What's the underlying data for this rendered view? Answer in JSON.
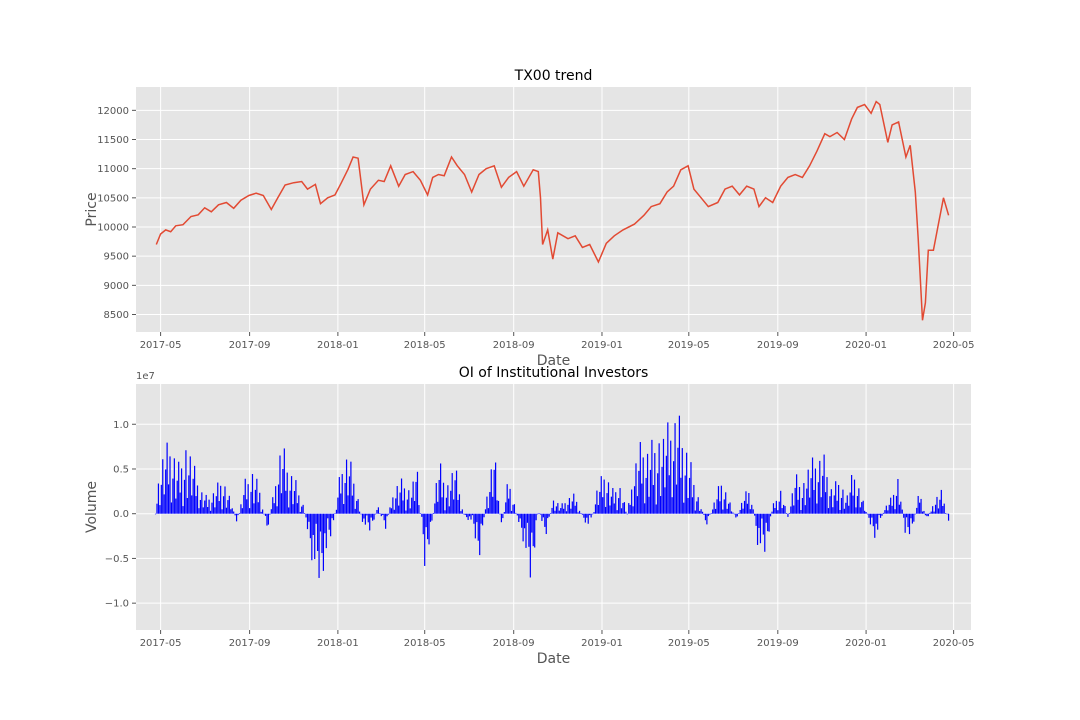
{
  "chart_data": [
    {
      "type": "line",
      "title": "TX00 trend",
      "xlabel": "Date",
      "ylabel": "Price",
      "xlim": [
        "2017-03-28",
        "2020-05-25"
      ],
      "ylim": [
        8200,
        12400
      ],
      "x_ticks": [
        "2017-05",
        "2017-09",
        "2018-01",
        "2018-05",
        "2018-09",
        "2019-01",
        "2019-05",
        "2019-09",
        "2020-01",
        "2020-05"
      ],
      "y_ticks": [
        8500,
        9000,
        9500,
        10000,
        10500,
        11000,
        11500,
        12000
      ],
      "grid": true,
      "series": [
        {
          "color": "#e24a33",
          "points": [
            [
              "2017-04-25",
              9700
            ],
            [
              "2017-05-01",
              9880
            ],
            [
              "2017-05-08",
              9950
            ],
            [
              "2017-05-15",
              9920
            ],
            [
              "2017-05-22",
              10020
            ],
            [
              "2017-06-01",
              10040
            ],
            [
              "2017-06-12",
              10180
            ],
            [
              "2017-06-22",
              10210
            ],
            [
              "2017-07-01",
              10330
            ],
            [
              "2017-07-10",
              10260
            ],
            [
              "2017-07-20",
              10380
            ],
            [
              "2017-07-31",
              10420
            ],
            [
              "2017-08-10",
              10320
            ],
            [
              "2017-08-20",
              10460
            ],
            [
              "2017-08-31",
              10540
            ],
            [
              "2017-09-10",
              10580
            ],
            [
              "2017-09-20",
              10540
            ],
            [
              "2017-10-01",
              10300
            ],
            [
              "2017-10-10",
              10500
            ],
            [
              "2017-10-20",
              10720
            ],
            [
              "2017-11-01",
              10760
            ],
            [
              "2017-11-12",
              10780
            ],
            [
              "2017-11-20",
              10650
            ],
            [
              "2017-12-01",
              10730
            ],
            [
              "2017-12-08",
              10400
            ],
            [
              "2017-12-18",
              10500
            ],
            [
              "2017-12-28",
              10550
            ],
            [
              "2018-01-05",
              10740
            ],
            [
              "2018-01-15",
              10990
            ],
            [
              "2018-01-22",
              11200
            ],
            [
              "2018-01-29",
              11180
            ],
            [
              "2018-02-06",
              10380
            ],
            [
              "2018-02-15",
              10650
            ],
            [
              "2018-02-26",
              10800
            ],
            [
              "2018-03-06",
              10780
            ],
            [
              "2018-03-15",
              11050
            ],
            [
              "2018-03-26",
              10700
            ],
            [
              "2018-04-04",
              10900
            ],
            [
              "2018-04-15",
              10950
            ],
            [
              "2018-04-25",
              10800
            ],
            [
              "2018-05-05",
              10550
            ],
            [
              "2018-05-12",
              10850
            ],
            [
              "2018-05-20",
              10900
            ],
            [
              "2018-05-28",
              10880
            ],
            [
              "2018-06-07",
              11200
            ],
            [
              "2018-06-15",
              11050
            ],
            [
              "2018-06-25",
              10900
            ],
            [
              "2018-07-05",
              10600
            ],
            [
              "2018-07-15",
              10900
            ],
            [
              "2018-07-25",
              11000
            ],
            [
              "2018-08-05",
              11050
            ],
            [
              "2018-08-15",
              10680
            ],
            [
              "2018-08-25",
              10850
            ],
            [
              "2018-09-05",
              10950
            ],
            [
              "2018-09-15",
              10700
            ],
            [
              "2018-09-28",
              10980
            ],
            [
              "2018-10-05",
              10950
            ],
            [
              "2018-10-08",
              10500
            ],
            [
              "2018-10-11",
              9700
            ],
            [
              "2018-10-18",
              9950
            ],
            [
              "2018-10-25",
              9450
            ],
            [
              "2018-11-01",
              9900
            ],
            [
              "2018-11-15",
              9800
            ],
            [
              "2018-11-25",
              9850
            ],
            [
              "2018-12-05",
              9650
            ],
            [
              "2018-12-15",
              9700
            ],
            [
              "2018-12-27",
              9400
            ],
            [
              "2019-01-07",
              9720
            ],
            [
              "2019-01-18",
              9850
            ],
            [
              "2019-01-30",
              9950
            ],
            [
              "2019-02-15",
              10050
            ],
            [
              "2019-02-28",
              10200
            ],
            [
              "2019-03-10",
              10350
            ],
            [
              "2019-03-22",
              10400
            ],
            [
              "2019-04-01",
              10600
            ],
            [
              "2019-04-10",
              10700
            ],
            [
              "2019-04-20",
              10980
            ],
            [
              "2019-04-30",
              11050
            ],
            [
              "2019-05-08",
              10650
            ],
            [
              "2019-05-18",
              10500
            ],
            [
              "2019-05-28",
              10350
            ],
            [
              "2019-06-10",
              10420
            ],
            [
              "2019-06-20",
              10650
            ],
            [
              "2019-06-30",
              10700
            ],
            [
              "2019-07-10",
              10550
            ],
            [
              "2019-07-20",
              10700
            ],
            [
              "2019-07-30",
              10650
            ],
            [
              "2019-08-06",
              10350
            ],
            [
              "2019-08-15",
              10500
            ],
            [
              "2019-08-25",
              10420
            ],
            [
              "2019-09-05",
              10700
            ],
            [
              "2019-09-15",
              10850
            ],
            [
              "2019-09-25",
              10900
            ],
            [
              "2019-10-05",
              10850
            ],
            [
              "2019-10-15",
              11050
            ],
            [
              "2019-10-25",
              11300
            ],
            [
              "2019-11-05",
              11600
            ],
            [
              "2019-11-12",
              11550
            ],
            [
              "2019-11-22",
              11620
            ],
            [
              "2019-12-02",
              11500
            ],
            [
              "2019-12-12",
              11850
            ],
            [
              "2019-12-20",
              12050
            ],
            [
              "2019-12-30",
              12100
            ],
            [
              "2020-01-08",
              11950
            ],
            [
              "2020-01-15",
              12150
            ],
            [
              "2020-01-20",
              12100
            ],
            [
              "2020-01-31",
              11450
            ],
            [
              "2020-02-06",
              11750
            ],
            [
              "2020-02-15",
              11800
            ],
            [
              "2020-02-25",
              11200
            ],
            [
              "2020-03-02",
              11400
            ],
            [
              "2020-03-09",
              10600
            ],
            [
              "2020-03-13",
              9800
            ],
            [
              "2020-03-19",
              8400
            ],
            [
              "2020-03-23",
              8700
            ],
            [
              "2020-03-27",
              9600
            ],
            [
              "2020-04-03",
              9600
            ],
            [
              "2020-04-10",
              10050
            ],
            [
              "2020-04-17",
              10500
            ],
            [
              "2020-04-24",
              10200
            ]
          ]
        }
      ]
    },
    {
      "type": "bar",
      "title": "OI of Institutional Investors",
      "xlabel": "Date",
      "ylabel": "Volume",
      "offset_text": "1e7",
      "xlim": [
        "2017-03-28",
        "2020-05-25"
      ],
      "ylim": [
        -1.3,
        1.45
      ],
      "x_ticks": [
        "2017-05",
        "2017-09",
        "2018-01",
        "2018-05",
        "2018-09",
        "2019-01",
        "2019-05",
        "2019-09",
        "2020-01",
        "2020-05"
      ],
      "y_ticks": [
        1.0,
        0.5,
        0.0,
        -0.5,
        -1.0
      ],
      "y_tick_labels": [
        "1.0",
        "0.5",
        "0.0",
        "−0.5",
        "−1.0"
      ],
      "grid": true,
      "bar_color": "#0000ff",
      "bar_step_days": 2,
      "start_date": "2017-04-24",
      "envelope": [
        [
          "2017-04-24",
          0.0
        ],
        [
          "2017-04-27",
          0.4
        ],
        [
          "2017-05-05",
          0.75
        ],
        [
          "2017-05-15",
          0.9
        ],
        [
          "2017-05-25",
          0.6
        ],
        [
          "2017-06-05",
          0.9
        ],
        [
          "2017-06-15",
          0.6
        ],
        [
          "2017-06-25",
          0.3
        ],
        [
          "2017-07-05",
          0.2
        ],
        [
          "2017-07-15",
          0.3
        ],
        [
          "2017-07-25",
          0.5
        ],
        [
          "2017-08-05",
          0.2
        ],
        [
          "2017-08-15",
          -0.15
        ],
        [
          "2017-08-25",
          0.4
        ],
        [
          "2017-09-05",
          0.55
        ],
        [
          "2017-09-15",
          0.35
        ],
        [
          "2017-09-25",
          -0.25
        ],
        [
          "2017-10-05",
          0.3
        ],
        [
          "2017-10-15",
          0.9
        ],
        [
          "2017-10-25",
          0.6
        ],
        [
          "2017-11-05",
          0.4
        ],
        [
          "2017-11-15",
          0.1
        ],
        [
          "2017-11-25",
          -0.5
        ],
        [
          "2017-12-05",
          -0.9
        ],
        [
          "2017-12-15",
          -0.6
        ],
        [
          "2017-12-25",
          -0.2
        ],
        [
          "2018-01-05",
          0.55
        ],
        [
          "2018-01-15",
          0.75
        ],
        [
          "2018-01-25",
          0.4
        ],
        [
          "2018-02-05",
          -0.15
        ],
        [
          "2018-02-15",
          -0.25
        ],
        [
          "2018-02-25",
          0.1
        ],
        [
          "2018-03-08",
          -0.2
        ],
        [
          "2018-03-20",
          0.35
        ],
        [
          "2018-04-01",
          0.45
        ],
        [
          "2018-04-12",
          0.3
        ],
        [
          "2018-04-20",
          0.6
        ],
        [
          "2018-05-01",
          -0.7
        ],
        [
          "2018-05-10",
          -0.2
        ],
        [
          "2018-05-20",
          0.7
        ],
        [
          "2018-06-01",
          0.4
        ],
        [
          "2018-06-12",
          0.6
        ],
        [
          "2018-06-25",
          -0.05
        ],
        [
          "2018-07-05",
          -0.1
        ],
        [
          "2018-07-15",
          -0.6
        ],
        [
          "2018-07-25",
          0.2
        ],
        [
          "2018-08-05",
          0.8
        ],
        [
          "2018-08-15",
          -0.2
        ],
        [
          "2018-08-25",
          0.5
        ],
        [
          "2018-09-05",
          0.0
        ],
        [
          "2018-09-15",
          -0.35
        ],
        [
          "2018-09-25",
          -0.9
        ],
        [
          "2018-10-05",
          0.1
        ],
        [
          "2018-10-15",
          -0.3
        ],
        [
          "2018-10-25",
          0.2
        ],
        [
          "2018-11-05",
          0.1
        ],
        [
          "2018-11-15",
          0.2
        ],
        [
          "2018-11-25",
          0.25
        ],
        [
          "2018-12-05",
          -0.05
        ],
        [
          "2018-12-15",
          -0.2
        ],
        [
          "2018-12-25",
          0.3
        ],
        [
          "2019-01-05",
          0.55
        ],
        [
          "2019-01-15",
          0.3
        ],
        [
          "2019-01-25",
          0.4
        ],
        [
          "2019-02-05",
          0.0
        ],
        [
          "2019-02-15",
          0.6
        ],
        [
          "2019-02-25",
          0.9
        ],
        [
          "2019-03-07",
          0.8
        ],
        [
          "2019-03-17",
          1.05
        ],
        [
          "2019-03-27",
          0.95
        ],
        [
          "2019-04-06",
          1.1
        ],
        [
          "2019-04-15",
          1.25
        ],
        [
          "2019-04-25",
          0.95
        ],
        [
          "2019-05-05",
          0.6
        ],
        [
          "2019-05-15",
          0.2
        ],
        [
          "2019-05-25",
          -0.15
        ],
        [
          "2019-06-05",
          0.15
        ],
        [
          "2019-06-15",
          0.45
        ],
        [
          "2019-06-25",
          0.2
        ],
        [
          "2019-07-05",
          -0.1
        ],
        [
          "2019-07-15",
          0.2
        ],
        [
          "2019-07-25",
          0.35
        ],
        [
          "2019-08-05",
          -0.45
        ],
        [
          "2019-08-15",
          -0.55
        ],
        [
          "2019-08-25",
          0.1
        ],
        [
          "2019-09-05",
          0.3
        ],
        [
          "2019-09-15",
          -0.05
        ],
        [
          "2019-09-25",
          0.5
        ],
        [
          "2019-10-05",
          0.4
        ],
        [
          "2019-10-15",
          0.6
        ],
        [
          "2019-10-25",
          0.7
        ],
        [
          "2019-11-05",
          0.7
        ],
        [
          "2019-11-15",
          0.3
        ],
        [
          "2019-11-25",
          0.5
        ],
        [
          "2019-12-05",
          0.2
        ],
        [
          "2019-12-15",
          0.55
        ],
        [
          "2019-12-25",
          0.25
        ],
        [
          "2020-01-05",
          -0.1
        ],
        [
          "2020-01-15",
          -0.35
        ],
        [
          "2020-01-25",
          0.05
        ],
        [
          "2020-02-05",
          0.2
        ],
        [
          "2020-02-15",
          0.5
        ],
        [
          "2020-02-25",
          -0.4
        ],
        [
          "2020-03-05",
          -0.2
        ],
        [
          "2020-03-15",
          0.3
        ],
        [
          "2020-03-25",
          -0.1
        ],
        [
          "2020-04-05",
          0.2
        ],
        [
          "2020-04-15",
          0.3
        ],
        [
          "2020-04-24",
          -0.1
        ]
      ]
    }
  ]
}
